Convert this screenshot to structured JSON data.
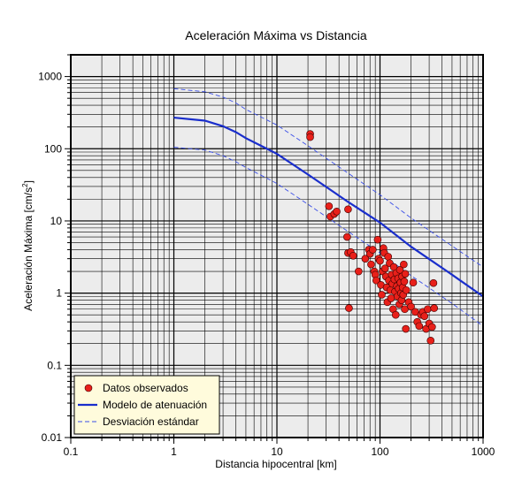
{
  "chart_data": {
    "type": "scatter",
    "title": "Aceleración Máxima vs Distancia",
    "xlabel": "Distancia hipocentral [km]",
    "ylabel_main": "Aceleración Máxima [cm/s",
    "ylabel_sup": "2",
    "ylabel_end": "]",
    "x_scale": "log",
    "y_scale": "log",
    "xlim": [
      0.1,
      1000
    ],
    "ylim": [
      0.01,
      2000
    ],
    "grid": true,
    "x_ticks": [
      {
        "value": 0.1,
        "label": "0.1"
      },
      {
        "value": 1,
        "label": "1"
      },
      {
        "value": 10,
        "label": "10"
      },
      {
        "value": 100,
        "label": "100"
      },
      {
        "value": 1000,
        "label": "1000"
      }
    ],
    "y_ticks": [
      {
        "value": 0.01,
        "label": "0.01"
      },
      {
        "value": 0.1,
        "label": "0.1"
      },
      {
        "value": 1,
        "label": "1"
      },
      {
        "value": 10,
        "label": "10"
      },
      {
        "value": 100,
        "label": "100"
      },
      {
        "value": 1000,
        "label": "1000"
      }
    ],
    "legend_position": "bottom-left",
    "legend": [
      {
        "name": "Datos observados",
        "kind": "marker",
        "color": "#e8201a"
      },
      {
        "name": "Modelo de atenuación",
        "kind": "solid-line",
        "color": "#1a2ecc"
      },
      {
        "name": "Desviación estándar",
        "kind": "dashed-line",
        "color": "#3a4ee8"
      }
    ],
    "series": [
      {
        "name": "Modelo de atenuación",
        "color": "#1a2ecc",
        "style": "solid",
        "points": [
          [
            1,
            270
          ],
          [
            2,
            245
          ],
          [
            3,
            205
          ],
          [
            4,
            170
          ],
          [
            5,
            140
          ],
          [
            7,
            110
          ],
          [
            10,
            85
          ],
          [
            20,
            44
          ],
          [
            50,
            18
          ],
          [
            100,
            9.5
          ],
          [
            200,
            4.4
          ],
          [
            500,
            1.8
          ],
          [
            1000,
            0.9
          ]
        ]
      },
      {
        "name": "Desviación estándar",
        "color": "#3a4ee8",
        "style": "dashed",
        "points": [
          [
            1,
            680
          ],
          [
            2,
            615
          ],
          [
            3,
            520
          ],
          [
            4,
            430
          ],
          [
            5,
            350
          ],
          [
            7,
            275
          ],
          [
            10,
            213
          ],
          [
            20,
            110
          ],
          [
            50,
            45
          ],
          [
            100,
            23
          ],
          [
            200,
            11
          ],
          [
            500,
            4.5
          ],
          [
            1000,
            2.3
          ]
        ]
      },
      {
        "name": "Desviación estándar",
        "color": "#3a4ee8",
        "style": "dashed",
        "points": [
          [
            1,
            105
          ],
          [
            2,
            96
          ],
          [
            3,
            80
          ],
          [
            4,
            66
          ],
          [
            5,
            55
          ],
          [
            7,
            43
          ],
          [
            10,
            33
          ],
          [
            20,
            17
          ],
          [
            50,
            7
          ],
          [
            100,
            3.6
          ],
          [
            200,
            1.75
          ],
          [
            500,
            0.72
          ],
          [
            1000,
            0.35
          ]
        ]
      },
      {
        "name": "Datos observados",
        "color": "#e8201a",
        "style": "marker",
        "points": [
          [
            21,
            160
          ],
          [
            21,
            145
          ],
          [
            32,
            16
          ],
          [
            33,
            11.5
          ],
          [
            36,
            12.5
          ],
          [
            38,
            13.5
          ],
          [
            49,
            14.5
          ],
          [
            48,
            6
          ],
          [
            49,
            3.6
          ],
          [
            52,
            3.7
          ],
          [
            55,
            3.3
          ],
          [
            50,
            0.62
          ],
          [
            62,
            2
          ],
          [
            72,
            3
          ],
          [
            78,
            4
          ],
          [
            80,
            3.5
          ],
          [
            82,
            2.5
          ],
          [
            85,
            4
          ],
          [
            88,
            2
          ],
          [
            90,
            1.8
          ],
          [
            92,
            1.5
          ],
          [
            95,
            5.5
          ],
          [
            97,
            3
          ],
          [
            100,
            2.8
          ],
          [
            102,
            1.3
          ],
          [
            104,
            0.95
          ],
          [
            106,
            2
          ],
          [
            108,
            4.2
          ],
          [
            110,
            3.6
          ],
          [
            112,
            2.2
          ],
          [
            114,
            1.7
          ],
          [
            116,
            1.2
          ],
          [
            118,
            0.75
          ],
          [
            120,
            3.2
          ],
          [
            122,
            1.5
          ],
          [
            124,
            2.6
          ],
          [
            126,
            1.1
          ],
          [
            128,
            0.85
          ],
          [
            130,
            1.8
          ],
          [
            132,
            1.35
          ],
          [
            134,
            0.6
          ],
          [
            136,
            2.3
          ],
          [
            138,
            1.55
          ],
          [
            140,
            1.05
          ],
          [
            142,
            0.5
          ],
          [
            144,
            1.9
          ],
          [
            146,
            1.25
          ],
          [
            148,
            0.9
          ],
          [
            150,
            1.6
          ],
          [
            152,
            1.15
          ],
          [
            154,
            0.7
          ],
          [
            156,
            2.1
          ],
          [
            158,
            1.4
          ],
          [
            160,
            1.0
          ],
          [
            162,
            0.8
          ],
          [
            164,
            1.7
          ],
          [
            166,
            1.2
          ],
          [
            168,
            0.95
          ],
          [
            170,
            2.5
          ],
          [
            172,
            1.45
          ],
          [
            174,
            0.6
          ],
          [
            176,
            1.85
          ],
          [
            178,
            0.32
          ],
          [
            180,
            1.1
          ],
          [
            190,
            0.75
          ],
          [
            200,
            0.65
          ],
          [
            210,
            1.4
          ],
          [
            220,
            0.55
          ],
          [
            230,
            0.4
          ],
          [
            240,
            0.35
          ],
          [
            250,
            0.5
          ],
          [
            260,
            0.55
          ],
          [
            270,
            0.48
          ],
          [
            280,
            0.32
          ],
          [
            290,
            0.6
          ],
          [
            300,
            0.38
          ],
          [
            310,
            0.22
          ],
          [
            320,
            0.34
          ],
          [
            330,
            1.38
          ],
          [
            335,
            0.62
          ]
        ]
      }
    ]
  }
}
